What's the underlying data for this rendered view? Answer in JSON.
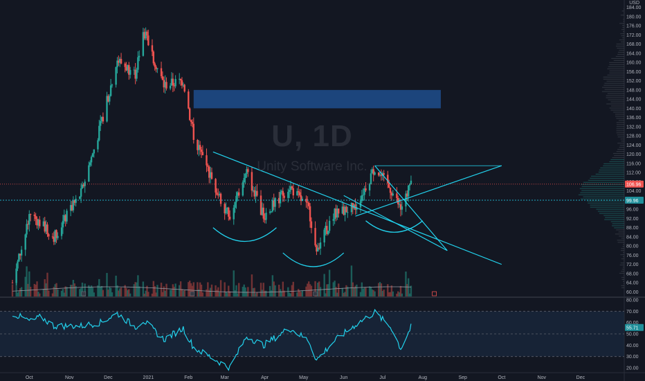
{
  "symbol": "U, 1D",
  "company": "Unity Software Inc.",
  "currency": "USD",
  "price_axis": {
    "ticks": [
      "184.00",
      "180.00",
      "176.00",
      "172.00",
      "168.00",
      "164.00",
      "160.00",
      "156.00",
      "152.00",
      "148.00",
      "144.00",
      "140.00",
      "136.00",
      "132.00",
      "128.00",
      "124.00",
      "120.00",
      "116.00",
      "112.00",
      "108.00",
      "104.00",
      "100.00",
      "96.00",
      "92.00",
      "88.00",
      "84.00",
      "80.00",
      "76.00",
      "72.00",
      "68.00",
      "64.00",
      "60.00"
    ],
    "last_price_label": "106.96",
    "crosshair_label": "99.96"
  },
  "rsi_axis": {
    "ticks": [
      "80.00",
      "70.00",
      "60.00",
      "50.00",
      "40.00",
      "30.00",
      "20.00"
    ],
    "value_label": "55.71"
  },
  "time_axis": [
    "Oct",
    "Nov",
    "Dec",
    "2021",
    "Feb",
    "Mar",
    "Apr",
    "May",
    "Jun",
    "Jul",
    "Aug",
    "Sep",
    "Oct",
    "Nov",
    "Dec"
  ],
  "colors": {
    "background": "#131722",
    "up": "#26a69a",
    "down": "#ef5350",
    "drawing": "#22d3ee",
    "supply_zone": "#1e4e8c",
    "rsi_band": "#1a2c44"
  },
  "chart_data": {
    "type": "candlestick",
    "title": "U, 1D",
    "subtitle": "Unity Software Inc.",
    "ylim": [
      58,
      186
    ],
    "x_range": [
      "2020-09-18",
      "2021-12-31"
    ],
    "key_points": [
      {
        "date": "2020-09-18",
        "price": 64
      },
      {
        "date": "2020-10-02",
        "price": 94
      },
      {
        "date": "2020-10-20",
        "price": 84
      },
      {
        "date": "2020-11-10",
        "price": 103
      },
      {
        "date": "2020-11-25",
        "price": 132
      },
      {
        "date": "2020-12-08",
        "price": 161
      },
      {
        "date": "2020-12-22",
        "price": 155
      },
      {
        "date": "2020-12-28",
        "price": 174
      },
      {
        "date": "2021-01-13",
        "price": 150
      },
      {
        "date": "2021-01-28",
        "price": 152
      },
      {
        "date": "2021-02-05",
        "price": 128
      },
      {
        "date": "2021-02-22",
        "price": 105
      },
      {
        "date": "2021-03-05",
        "price": 92
      },
      {
        "date": "2021-03-18",
        "price": 112
      },
      {
        "date": "2021-03-31",
        "price": 93
      },
      {
        "date": "2021-04-20",
        "price": 106
      },
      {
        "date": "2021-05-05",
        "price": 96
      },
      {
        "date": "2021-05-11",
        "price": 79
      },
      {
        "date": "2021-05-25",
        "price": 94
      },
      {
        "date": "2021-06-10",
        "price": 97
      },
      {
        "date": "2021-06-25",
        "price": 114
      },
      {
        "date": "2021-07-08",
        "price": 104
      },
      {
        "date": "2021-07-15",
        "price": 96
      },
      {
        "date": "2021-07-23",
        "price": 107
      }
    ],
    "rsi": [
      {
        "date": "2020-09-18",
        "value": 68
      },
      {
        "date": "2020-10-02",
        "value": 61
      },
      {
        "date": "2020-10-10",
        "value": 65
      },
      {
        "date": "2020-10-20",
        "value": 57
      },
      {
        "date": "2020-11-10",
        "value": 57
      },
      {
        "date": "2020-11-25",
        "value": 60
      },
      {
        "date": "2020-12-08",
        "value": 68
      },
      {
        "date": "2020-12-22",
        "value": 56
      },
      {
        "date": "2020-12-28",
        "value": 62
      },
      {
        "date": "2021-01-13",
        "value": 45
      },
      {
        "date": "2021-01-28",
        "value": 55
      },
      {
        "date": "2021-02-05",
        "value": 38
      },
      {
        "date": "2021-02-22",
        "value": 27
      },
      {
        "date": "2021-03-05",
        "value": 20
      },
      {
        "date": "2021-03-18",
        "value": 48
      },
      {
        "date": "2021-03-31",
        "value": 40
      },
      {
        "date": "2021-04-20",
        "value": 55
      },
      {
        "date": "2021-05-05",
        "value": 44
      },
      {
        "date": "2021-05-11",
        "value": 27
      },
      {
        "date": "2021-05-25",
        "value": 44
      },
      {
        "date": "2021-06-10",
        "value": 58
      },
      {
        "date": "2021-06-25",
        "value": 69
      },
      {
        "date": "2021-07-08",
        "value": 55
      },
      {
        "date": "2021-07-15",
        "value": 37
      },
      {
        "date": "2021-07-23",
        "value": 56
      }
    ],
    "rsi_levels": [
      70,
      50,
      30
    ],
    "supply_zone": {
      "from": "2021-02-05",
      "to": "2021-08-15",
      "low": 140,
      "high": 148
    },
    "horizontal_levels": [
      {
        "name": "resistance",
        "price": 115
      },
      {
        "name": "last",
        "price": 107
      },
      {
        "name": "crosshair",
        "price": 99.96
      }
    ],
    "trendlines": [
      {
        "from": {
          "date": "2021-02-20",
          "price": 121
        },
        "to": {
          "date": "2021-10-01",
          "price": 72
        }
      },
      {
        "from": {
          "date": "2021-06-10",
          "price": 93
        },
        "to": {
          "date": "2021-10-01",
          "price": 115
        }
      },
      {
        "from": {
          "date": "2021-06-25",
          "price": 115
        },
        "to": {
          "date": "2021-08-20",
          "price": 78
        }
      },
      {
        "from": {
          "date": "2021-06-01",
          "price": 102
        },
        "to": {
          "date": "2021-08-20",
          "price": 78
        }
      }
    ],
    "arcs": [
      {
        "from": "2021-02-20",
        "to": "2021-04-10",
        "price": 88,
        "depth": 6
      },
      {
        "from": "2021-04-15",
        "to": "2021-06-01",
        "price": 77,
        "depth": 6
      },
      {
        "from": "2021-06-18",
        "to": "2021-08-01",
        "price": 91,
        "depth": 5
      }
    ],
    "grid": false,
    "legend": "none"
  }
}
